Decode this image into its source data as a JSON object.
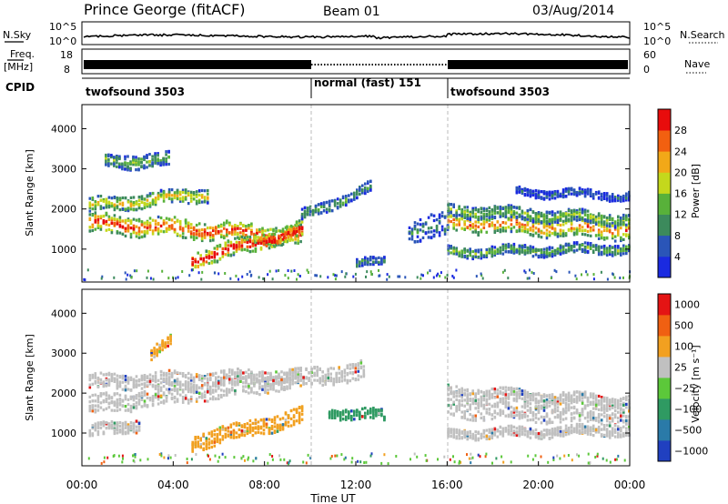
{
  "header": {
    "title": "Prince George (fitACF)",
    "beam": "Beam 01",
    "date": "03/Aug/2014"
  },
  "strip_panels": {
    "nsky_label": "N.Sky",
    "nsky_ticks": [
      "10^5",
      "10^0"
    ],
    "nsearch_label": "N.Search",
    "freq_label_line1": "Freq.",
    "freq_label_line2": "[MHz]",
    "freq_ticks": [
      "18",
      "8"
    ],
    "nave_ticks": [
      "60",
      "0"
    ],
    "nave_label": "Nave",
    "cpid_label": "CPID",
    "cpid_segments": [
      {
        "name": "twofsound 3503",
        "start_hour": 0,
        "end_hour": 10
      },
      {
        "name": "normal (fast) 151",
        "start_hour": 10,
        "end_hour": 16
      },
      {
        "name": "twofsound 3503",
        "start_hour": 16,
        "end_hour": 24
      }
    ]
  },
  "chart_data": [
    {
      "type": "heatmap",
      "panel": "power",
      "ylabel": "Slant Range [km]",
      "ylim": [
        180,
        4600
      ],
      "yticks": [
        "1000",
        "2000",
        "3000",
        "4000"
      ],
      "xlim": [
        0,
        24
      ],
      "colorbar": {
        "label": "Power [dB]",
        "ticks": [
          "4",
          "8",
          "12",
          "16",
          "20",
          "24",
          "28"
        ],
        "colors": [
          "#1a2ae0",
          "#2a55b8",
          "#3c8a5c",
          "#58b13a",
          "#c4d81c",
          "#f2a818",
          "#f26010",
          "#e80c0c"
        ]
      },
      "bands": [
        {
          "start_hour": 0.3,
          "end_hour": 9.6,
          "range_start_km": 1620,
          "range_end_km": 1300,
          "width_km": 230,
          "level": 0.85
        },
        {
          "start_hour": 0.3,
          "end_hour": 5.5,
          "range_start_km": 2050,
          "range_end_km": 2350,
          "width_km": 170,
          "level": 0.6
        },
        {
          "start_hour": 1.0,
          "end_hour": 3.8,
          "range_start_km": 3150,
          "range_end_km": 3200,
          "width_km": 170,
          "level": 0.4
        },
        {
          "start_hour": 4.8,
          "end_hour": 9.6,
          "range_start_km": 700,
          "range_end_km": 1450,
          "width_km": 200,
          "level": 0.95
        },
        {
          "start_hour": 9.6,
          "end_hour": 12.6,
          "range_start_km": 1800,
          "range_end_km": 2500,
          "width_km": 130,
          "level": 0.35
        },
        {
          "start_hour": 12.0,
          "end_hour": 13.2,
          "range_start_km": 620,
          "range_end_km": 650,
          "width_km": 100,
          "level": 0.3
        },
        {
          "start_hour": 14.3,
          "end_hour": 16.0,
          "range_start_km": 1400,
          "range_end_km": 1600,
          "width_km": 300,
          "level": 0.25
        },
        {
          "start_hour": 16.0,
          "end_hour": 24.0,
          "range_start_km": 1650,
          "range_end_km": 1450,
          "width_km": 230,
          "level": 0.75
        },
        {
          "start_hour": 16.0,
          "end_hour": 24.0,
          "range_start_km": 1950,
          "range_end_km": 1700,
          "width_km": 150,
          "level": 0.45
        },
        {
          "start_hour": 16.0,
          "end_hour": 24.0,
          "range_start_km": 900,
          "range_end_km": 1000,
          "width_km": 120,
          "level": 0.4
        },
        {
          "start_hour": 19.0,
          "end_hour": 24.0,
          "range_start_km": 2400,
          "range_end_km": 2300,
          "width_km": 100,
          "level": 0.2
        }
      ]
    },
    {
      "type": "heatmap",
      "panel": "velocity",
      "ylabel": "Slant Range [km]",
      "ylim": [
        180,
        4600
      ],
      "yticks": [
        "1000",
        "2000",
        "3000",
        "4000"
      ],
      "xlabel": "Time UT",
      "xlim": [
        0,
        24
      ],
      "xticks": [
        "00:00",
        "04:00",
        "08:00",
        "12:00",
        "16:00",
        "20:00",
        "00:00"
      ],
      "colorbar": {
        "label": "Velocity [m s⁻¹]",
        "ticks": [
          "1000",
          "500",
          "100",
          "25",
          "−25",
          "−100",
          "−500",
          "−1000"
        ],
        "colors": [
          "#2040c0",
          "#2a7aa8",
          "#2f9a62",
          "#5cc83a",
          "#c0c0c0",
          "#f2a020",
          "#f06012",
          "#e41414"
        ]
      },
      "bands": [
        {
          "start_hour": 0.3,
          "end_hour": 12.4,
          "range_start_km": 1650,
          "range_end_km": 2550,
          "width_km": 230,
          "color": "#c0c0c0"
        },
        {
          "start_hour": 0.3,
          "end_hour": 9.6,
          "range_start_km": 2250,
          "range_end_km": 2400,
          "width_km": 180,
          "color": "#c0c0c0"
        },
        {
          "start_hour": 0.3,
          "end_hour": 2.5,
          "range_start_km": 1000,
          "range_end_km": 1200,
          "width_km": 150,
          "color": "#c0c0c0"
        },
        {
          "start_hour": 4.8,
          "end_hour": 9.6,
          "range_start_km": 750,
          "range_end_km": 1400,
          "width_km": 200,
          "color": "#f2a020"
        },
        {
          "start_hour": 3.0,
          "end_hour": 3.9,
          "range_start_km": 2950,
          "range_end_km": 3250,
          "width_km": 150,
          "color": "#f2a020"
        },
        {
          "start_hour": 16.0,
          "end_hour": 24.0,
          "range_start_km": 1600,
          "range_end_km": 1400,
          "width_km": 230,
          "color": "#c0c0c0"
        },
        {
          "start_hour": 16.0,
          "end_hour": 24.0,
          "range_start_km": 2000,
          "range_end_km": 1750,
          "width_km": 150,
          "color": "#c0c0c0"
        },
        {
          "start_hour": 16.0,
          "end_hour": 24.0,
          "range_start_km": 950,
          "range_end_km": 1050,
          "width_km": 120,
          "color": "#c0c0c0"
        },
        {
          "start_hour": 10.8,
          "end_hour": 13.2,
          "range_start_km": 1500,
          "range_end_km": 1400,
          "width_km": 130,
          "color": "#2f9a62"
        }
      ]
    }
  ]
}
